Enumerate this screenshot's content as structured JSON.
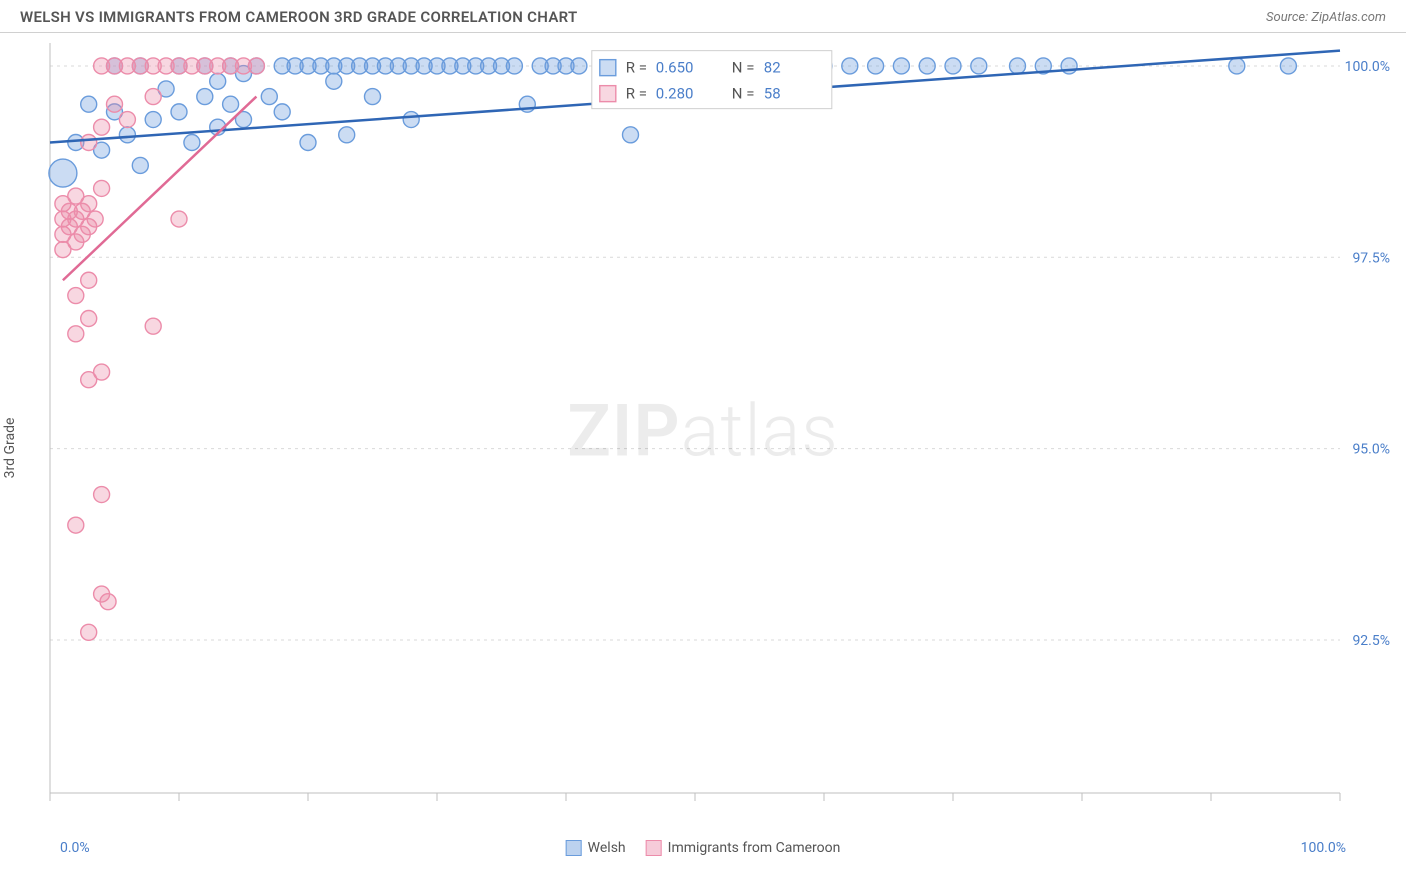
{
  "header": {
    "title": "WELSH VS IMMIGRANTS FROM CAMEROON 3RD GRADE CORRELATION CHART",
    "source": "Source: ZipAtlas.com"
  },
  "ylabel": "3rd Grade",
  "watermark_zip": "ZIP",
  "watermark_atlas": "atlas",
  "chart": {
    "type": "scatter",
    "background_color": "#ffffff",
    "grid_color": "#d9d9d9",
    "axis_color": "#bfbfbf",
    "tick_color": "#bfbfbf",
    "xlim": [
      0,
      100
    ],
    "ylim": [
      90.5,
      100.3
    ],
    "x_tick_positions": [
      0,
      10,
      20,
      30,
      40,
      50,
      60,
      70,
      80,
      90,
      100
    ],
    "x_tick_labels_shown": {
      "0": "0.0%",
      "100": "100.0%"
    },
    "y_ticks": [
      {
        "v": 92.5,
        "label": "92.5%"
      },
      {
        "v": 95.0,
        "label": "95.0%"
      },
      {
        "v": 97.5,
        "label": "97.5%"
      },
      {
        "v": 100.0,
        "label": "100.0%"
      }
    ],
    "series": [
      {
        "name": "Welsh",
        "color_fill": "rgba(106,156,220,0.35)",
        "color_stroke": "#6a9cdc",
        "trend_color": "#2f66b5",
        "trend": {
          "x1": 0,
          "y1": 99.0,
          "x2": 100,
          "y2": 100.2
        },
        "r_label": "R = ",
        "r_value": "0.650",
        "n_label": "N = ",
        "n_value": "82",
        "points": [
          {
            "x": 1,
            "y": 98.6,
            "r": 14
          },
          {
            "x": 2,
            "y": 99.0,
            "r": 8
          },
          {
            "x": 3,
            "y": 99.5,
            "r": 8
          },
          {
            "x": 4,
            "y": 98.9,
            "r": 8
          },
          {
            "x": 5,
            "y": 99.4,
            "r": 8
          },
          {
            "x": 5,
            "y": 100.0,
            "r": 8
          },
          {
            "x": 6,
            "y": 99.1,
            "r": 8
          },
          {
            "x": 7,
            "y": 98.7,
            "r": 8
          },
          {
            "x": 7,
            "y": 100.0,
            "r": 8
          },
          {
            "x": 8,
            "y": 99.3,
            "r": 8
          },
          {
            "x": 9,
            "y": 99.7,
            "r": 8
          },
          {
            "x": 10,
            "y": 100.0,
            "r": 8
          },
          {
            "x": 10,
            "y": 99.4,
            "r": 8
          },
          {
            "x": 11,
            "y": 99.0,
            "r": 8
          },
          {
            "x": 12,
            "y": 99.6,
            "r": 8
          },
          {
            "x": 12,
            "y": 100.0,
            "r": 8
          },
          {
            "x": 13,
            "y": 99.2,
            "r": 8
          },
          {
            "x": 13,
            "y": 99.8,
            "r": 8
          },
          {
            "x": 14,
            "y": 99.5,
            "r": 8
          },
          {
            "x": 14,
            "y": 100.0,
            "r": 8
          },
          {
            "x": 15,
            "y": 99.3,
            "r": 8
          },
          {
            "x": 15,
            "y": 99.9,
            "r": 8
          },
          {
            "x": 16,
            "y": 100.0,
            "r": 8
          },
          {
            "x": 17,
            "y": 99.6,
            "r": 8
          },
          {
            "x": 18,
            "y": 100.0,
            "r": 8
          },
          {
            "x": 18,
            "y": 99.4,
            "r": 8
          },
          {
            "x": 19,
            "y": 100.0,
            "r": 8
          },
          {
            "x": 20,
            "y": 99.0,
            "r": 8
          },
          {
            "x": 20,
            "y": 100.0,
            "r": 8
          },
          {
            "x": 21,
            "y": 100.0,
            "r": 8
          },
          {
            "x": 22,
            "y": 99.8,
            "r": 8
          },
          {
            "x": 22,
            "y": 100.0,
            "r": 8
          },
          {
            "x": 23,
            "y": 100.0,
            "r": 8
          },
          {
            "x": 23,
            "y": 99.1,
            "r": 8
          },
          {
            "x": 24,
            "y": 100.0,
            "r": 8
          },
          {
            "x": 25,
            "y": 100.0,
            "r": 8
          },
          {
            "x": 25,
            "y": 99.6,
            "r": 8
          },
          {
            "x": 26,
            "y": 100.0,
            "r": 8
          },
          {
            "x": 27,
            "y": 100.0,
            "r": 8
          },
          {
            "x": 28,
            "y": 100.0,
            "r": 8
          },
          {
            "x": 28,
            "y": 99.3,
            "r": 8
          },
          {
            "x": 29,
            "y": 100.0,
            "r": 8
          },
          {
            "x": 30,
            "y": 100.0,
            "r": 8
          },
          {
            "x": 31,
            "y": 100.0,
            "r": 8
          },
          {
            "x": 32,
            "y": 100.0,
            "r": 8
          },
          {
            "x": 33,
            "y": 100.0,
            "r": 8
          },
          {
            "x": 34,
            "y": 100.0,
            "r": 8
          },
          {
            "x": 35,
            "y": 100.0,
            "r": 8
          },
          {
            "x": 36,
            "y": 100.0,
            "r": 8
          },
          {
            "x": 37,
            "y": 99.5,
            "r": 8
          },
          {
            "x": 38,
            "y": 100.0,
            "r": 8
          },
          {
            "x": 39,
            "y": 100.0,
            "r": 8
          },
          {
            "x": 40,
            "y": 100.0,
            "r": 8
          },
          {
            "x": 41,
            "y": 100.0,
            "r": 8
          },
          {
            "x": 43,
            "y": 100.0,
            "r": 8
          },
          {
            "x": 45,
            "y": 99.1,
            "r": 8
          },
          {
            "x": 48,
            "y": 100.0,
            "r": 8
          },
          {
            "x": 50,
            "y": 100.0,
            "r": 8
          },
          {
            "x": 52,
            "y": 100.0,
            "r": 8
          },
          {
            "x": 55,
            "y": 100.0,
            "r": 8
          },
          {
            "x": 58,
            "y": 100.0,
            "r": 8
          },
          {
            "x": 60,
            "y": 100.0,
            "r": 8
          },
          {
            "x": 62,
            "y": 100.0,
            "r": 8
          },
          {
            "x": 64,
            "y": 100.0,
            "r": 8
          },
          {
            "x": 66,
            "y": 100.0,
            "r": 8
          },
          {
            "x": 68,
            "y": 100.0,
            "r": 8
          },
          {
            "x": 70,
            "y": 100.0,
            "r": 8
          },
          {
            "x": 72,
            "y": 100.0,
            "r": 8
          },
          {
            "x": 75,
            "y": 100.0,
            "r": 8
          },
          {
            "x": 77,
            "y": 100.0,
            "r": 8
          },
          {
            "x": 79,
            "y": 100.0,
            "r": 8
          },
          {
            "x": 92,
            "y": 100.0,
            "r": 8
          },
          {
            "x": 96,
            "y": 100.0,
            "r": 8
          }
        ]
      },
      {
        "name": "Immigrants from Cameroon",
        "color_fill": "rgba(236,140,170,0.35)",
        "color_stroke": "#ec8caa",
        "trend_color": "#e06a95",
        "trend": {
          "x1": 1,
          "y1": 97.2,
          "x2": 16,
          "y2": 99.6
        },
        "r_label": "R = ",
        "r_value": "0.280",
        "n_label": "N = ",
        "n_value": "58",
        "points": [
          {
            "x": 1,
            "y": 97.6,
            "r": 8
          },
          {
            "x": 1,
            "y": 97.8,
            "r": 8
          },
          {
            "x": 1,
            "y": 98.0,
            "r": 8
          },
          {
            "x": 1,
            "y": 98.2,
            "r": 8
          },
          {
            "x": 1.5,
            "y": 97.9,
            "r": 8
          },
          {
            "x": 1.5,
            "y": 98.1,
            "r": 8
          },
          {
            "x": 2,
            "y": 97.7,
            "r": 8
          },
          {
            "x": 2,
            "y": 98.0,
            "r": 8
          },
          {
            "x": 2,
            "y": 98.3,
            "r": 8
          },
          {
            "x": 2.5,
            "y": 98.1,
            "r": 8
          },
          {
            "x": 2.5,
            "y": 97.8,
            "r": 8
          },
          {
            "x": 3,
            "y": 97.9,
            "r": 8
          },
          {
            "x": 3,
            "y": 98.2,
            "r": 8
          },
          {
            "x": 3,
            "y": 99.0,
            "r": 8
          },
          {
            "x": 3.5,
            "y": 98.0,
            "r": 8
          },
          {
            "x": 4,
            "y": 98.4,
            "r": 8
          },
          {
            "x": 4,
            "y": 99.2,
            "r": 8
          },
          {
            "x": 4,
            "y": 100.0,
            "r": 8
          },
          {
            "x": 5,
            "y": 99.5,
            "r": 8
          },
          {
            "x": 5,
            "y": 100.0,
            "r": 8
          },
          {
            "x": 6,
            "y": 100.0,
            "r": 8
          },
          {
            "x": 6,
            "y": 99.3,
            "r": 8
          },
          {
            "x": 7,
            "y": 100.0,
            "r": 8
          },
          {
            "x": 8,
            "y": 100.0,
            "r": 8
          },
          {
            "x": 8,
            "y": 99.6,
            "r": 8
          },
          {
            "x": 9,
            "y": 100.0,
            "r": 8
          },
          {
            "x": 10,
            "y": 100.0,
            "r": 8
          },
          {
            "x": 10,
            "y": 98.0,
            "r": 8
          },
          {
            "x": 11,
            "y": 100.0,
            "r": 8
          },
          {
            "x": 12,
            "y": 100.0,
            "r": 8
          },
          {
            "x": 13,
            "y": 100.0,
            "r": 8
          },
          {
            "x": 14,
            "y": 100.0,
            "r": 8
          },
          {
            "x": 15,
            "y": 100.0,
            "r": 8
          },
          {
            "x": 16,
            "y": 100.0,
            "r": 8
          },
          {
            "x": 2,
            "y": 96.5,
            "r": 8
          },
          {
            "x": 3,
            "y": 96.7,
            "r": 8
          },
          {
            "x": 4,
            "y": 96.0,
            "r": 8
          },
          {
            "x": 3,
            "y": 95.9,
            "r": 8
          },
          {
            "x": 2,
            "y": 97.0,
            "r": 8
          },
          {
            "x": 3,
            "y": 97.2,
            "r": 8
          },
          {
            "x": 4,
            "y": 94.4,
            "r": 8
          },
          {
            "x": 2,
            "y": 94.0,
            "r": 8
          },
          {
            "x": 4,
            "y": 93.1,
            "r": 8
          },
          {
            "x": 4.5,
            "y": 93.0,
            "r": 8
          },
          {
            "x": 3,
            "y": 92.6,
            "r": 8
          },
          {
            "x": 8,
            "y": 96.6,
            "r": 8
          }
        ]
      }
    ],
    "legend": [
      {
        "name": "Welsh",
        "fill": "rgba(106,156,220,0.45)",
        "stroke": "#6a9cdc"
      },
      {
        "name": "Immigrants from Cameroon",
        "fill": "rgba(236,140,170,0.45)",
        "stroke": "#ec8caa"
      }
    ],
    "r_box": {
      "bg": "#ffffff",
      "border": "#cfcfcf",
      "label_color": "#555555",
      "value_color": "#4a7ec9"
    }
  }
}
